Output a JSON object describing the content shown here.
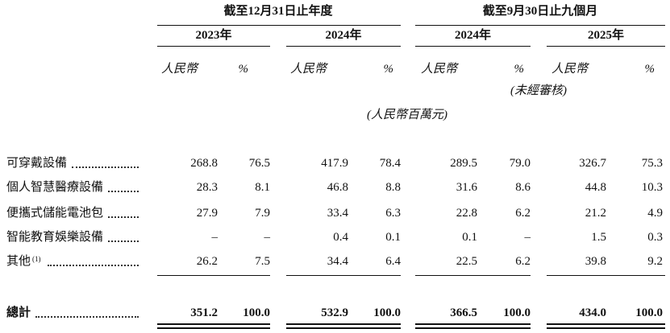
{
  "header": {
    "period_groups": [
      "截至12月31日止年度",
      "截至9月30日止九個月"
    ],
    "years": [
      "2023年",
      "2024年",
      "2024年",
      "2025年"
    ],
    "subheaders": [
      "人民幣",
      "%"
    ],
    "unaudited": "(未經審核)",
    "unit": "(人民幣百萬元)"
  },
  "table": {
    "rows": [
      {
        "label": "可穿戴設備",
        "values": [
          "268.8",
          "76.5",
          "417.9",
          "78.4",
          "289.5",
          "79.0",
          "326.7",
          "75.3"
        ]
      },
      {
        "label": "個人智慧醫療設備",
        "values": [
          "28.3",
          "8.1",
          "46.8",
          "8.8",
          "31.6",
          "8.6",
          "44.8",
          "10.3"
        ]
      },
      {
        "label": "便攜式儲能電池包",
        "values": [
          "27.9",
          "7.9",
          "33.4",
          "6.3",
          "22.8",
          "6.2",
          "21.2",
          "4.9"
        ]
      },
      {
        "label": "智能教育娛樂設備",
        "values": [
          "–",
          "–",
          "0.4",
          "0.1",
          "0.1",
          "–",
          "1.5",
          "0.3"
        ]
      },
      {
        "label": "其他",
        "note": "(1)",
        "values": [
          "26.2",
          "7.5",
          "34.4",
          "6.4",
          "22.5",
          "6.2",
          "39.8",
          "9.2"
        ]
      }
    ],
    "total": {
      "label": "總計",
      "values": [
        "351.2",
        "100.0",
        "532.9",
        "100.0",
        "366.5",
        "100.0",
        "434.0",
        "100.0"
      ]
    }
  }
}
